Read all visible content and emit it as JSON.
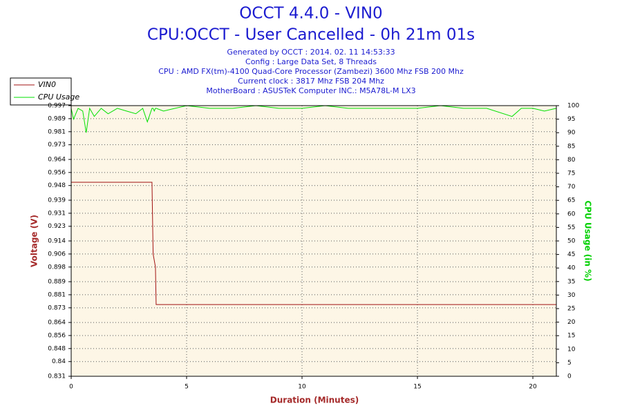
{
  "chart_data": {
    "type": "line",
    "title": "OCCT 4.4.0 - VIN0",
    "subtitle": "CPU:OCCT - User Cancelled - 0h 21m 01s",
    "info": [
      "Generated by OCCT : 2014. 02. 11 14:53:33",
      "Config : Large Data Set, 8 Threads",
      "CPU : AMD FX(tm)-4100 Quad-Core Processor (Zambezi) 3600 Mhz FSB 200 Mhz",
      "Current clock : 3817 Mhz FSB 204 Mhz",
      "MotherBoard : ASUSTeK Computer INC.: M5A78L-M LX3"
    ],
    "x_label": "Duration (Minutes)",
    "y_label": "Voltage (V)",
    "y2_label": "CPU Usage (in %)",
    "x": [
      0,
      0.1,
      0.3,
      0.5,
      0.65,
      0.8,
      1.0,
      1.3,
      1.6,
      2.0,
      2.4,
      2.8,
      3.1,
      3.3,
      3.5,
      3.55,
      3.6,
      3.65,
      3.68,
      4.0,
      4.5,
      5.0,
      6.0,
      7.0,
      8.0,
      9.0,
      10.0,
      11.0,
      12.0,
      13.0,
      14.0,
      15.0,
      16.0,
      17.0,
      18.0,
      19.1,
      19.5,
      20.0,
      20.5,
      21.017
    ],
    "series": [
      {
        "name": "VIN0",
        "color": "#a01010",
        "values": [
          0.95,
          0.95,
          0.95,
          0.95,
          0.95,
          0.95,
          0.95,
          0.95,
          0.95,
          0.95,
          0.95,
          0.95,
          0.95,
          0.95,
          0.95,
          0.906,
          0.902,
          0.898,
          0.875,
          0.875,
          0.875,
          0.875,
          0.875,
          0.875,
          0.875,
          0.875,
          0.875,
          0.875,
          0.875,
          0.875,
          0.875,
          0.875,
          0.875,
          0.875,
          0.875,
          0.875,
          0.875,
          0.875,
          0.875,
          0.875
        ]
      },
      {
        "name": "CPU Usage",
        "color": "#00e000",
        "axis": "y2",
        "values": [
          99,
          95,
          99,
          98,
          90,
          99,
          96,
          99,
          97,
          99,
          98,
          97,
          99,
          94,
          99,
          99,
          98,
          99,
          99,
          98,
          99,
          100,
          99,
          99,
          100,
          99,
          99,
          100,
          99,
          99,
          99,
          99,
          100,
          99,
          99,
          96,
          99,
          99,
          98,
          99
        ]
      }
    ],
    "xlim": [
      0,
      21.017
    ],
    "xticks": [
      0,
      5,
      10,
      15,
      20
    ],
    "ylim": [
      0.831,
      0.997
    ],
    "yticks": [
      0.831,
      0.84,
      0.848,
      0.856,
      0.864,
      0.873,
      0.881,
      0.889,
      0.898,
      0.906,
      0.914,
      0.923,
      0.931,
      0.939,
      0.948,
      0.956,
      0.964,
      0.973,
      0.981,
      0.989,
      0.997
    ],
    "y2lim": [
      0,
      100
    ],
    "y2ticks": [
      0,
      5,
      10,
      15,
      20,
      25,
      30,
      35,
      40,
      45,
      50,
      55,
      60,
      65,
      70,
      75,
      80,
      85,
      90,
      95,
      100
    ],
    "grid": true,
    "legend": "top-left"
  }
}
